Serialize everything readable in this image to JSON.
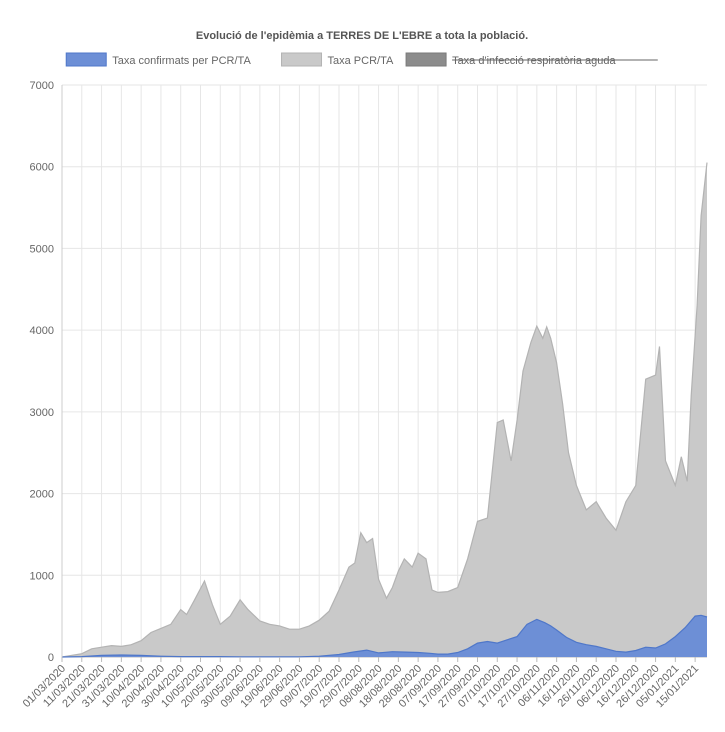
{
  "chart_data": {
    "type": "area",
    "title": "Evolució de l'epidèmia a TERRES DE L'EBRE a tota la població.",
    "ylim": [
      0,
      7000
    ],
    "yticks": [
      0,
      1000,
      2000,
      3000,
      4000,
      5000,
      6000,
      7000
    ],
    "grid": true,
    "legend_position": "top",
    "x_start": "01/03/2020",
    "x_end": "21/01/2021",
    "x_tick_labels": [
      "01/03/2020",
      "11/03/2020",
      "21/03/2020",
      "31/03/2020",
      "10/04/2020",
      "20/04/2020",
      "30/04/2020",
      "10/05/2020",
      "20/05/2020",
      "30/05/2020",
      "09/06/2020",
      "19/06/2020",
      "29/06/2020",
      "09/07/2020",
      "19/07/2020",
      "29/07/2020",
      "08/08/2020",
      "18/08/2020",
      "28/08/2020",
      "07/09/2020",
      "17/09/2020",
      "27/09/2020",
      "07/10/2020",
      "17/10/2020",
      "27/10/2020",
      "06/11/2020",
      "16/11/2020",
      "26/11/2020",
      "06/12/2020",
      "16/12/2020",
      "26/12/2020",
      "05/01/2021",
      "15/01/2021"
    ],
    "series": [
      {
        "name": "Taxa confirmats per PCR/TA",
        "color": "#6d8fd6",
        "stroke": "#4f77c9",
        "visible": true,
        "points": [
          [
            "01/03/2020",
            0
          ],
          [
            "11/03/2020",
            5
          ],
          [
            "21/03/2020",
            20
          ],
          [
            "31/03/2020",
            25
          ],
          [
            "10/04/2020",
            20
          ],
          [
            "20/04/2020",
            10
          ],
          [
            "30/04/2020",
            5
          ],
          [
            "10/05/2020",
            5
          ],
          [
            "20/05/2020",
            5
          ],
          [
            "30/05/2020",
            3
          ],
          [
            "09/06/2020",
            3
          ],
          [
            "19/06/2020",
            3
          ],
          [
            "29/06/2020",
            3
          ],
          [
            "09/07/2020",
            10
          ],
          [
            "19/07/2020",
            30
          ],
          [
            "26/07/2020",
            60
          ],
          [
            "02/08/2020",
            85
          ],
          [
            "08/08/2020",
            50
          ],
          [
            "15/08/2020",
            65
          ],
          [
            "22/08/2020",
            60
          ],
          [
            "28/08/2020",
            55
          ],
          [
            "03/09/2020",
            45
          ],
          [
            "07/09/2020",
            35
          ],
          [
            "12/09/2020",
            35
          ],
          [
            "17/09/2020",
            55
          ],
          [
            "22/09/2020",
            100
          ],
          [
            "27/09/2020",
            170
          ],
          [
            "02/10/2020",
            190
          ],
          [
            "07/10/2020",
            170
          ],
          [
            "12/10/2020",
            210
          ],
          [
            "17/10/2020",
            250
          ],
          [
            "22/10/2020",
            400
          ],
          [
            "27/10/2020",
            460
          ],
          [
            "31/10/2020",
            420
          ],
          [
            "03/11/2020",
            380
          ],
          [
            "06/11/2020",
            330
          ],
          [
            "11/11/2020",
            240
          ],
          [
            "16/11/2020",
            180
          ],
          [
            "21/11/2020",
            150
          ],
          [
            "26/11/2020",
            130
          ],
          [
            "01/12/2020",
            100
          ],
          [
            "06/12/2020",
            70
          ],
          [
            "11/12/2020",
            60
          ],
          [
            "16/12/2020",
            80
          ],
          [
            "21/12/2020",
            120
          ],
          [
            "26/12/2020",
            110
          ],
          [
            "31/12/2020",
            160
          ],
          [
            "05/01/2021",
            250
          ],
          [
            "10/01/2021",
            360
          ],
          [
            "15/01/2021",
            500
          ],
          [
            "18/01/2021",
            510
          ],
          [
            "21/01/2021",
            490
          ]
        ]
      },
      {
        "name": "Taxa PCR/TA",
        "color": "#c9c9c9",
        "stroke": "#b3b3b3",
        "visible": true,
        "points": [
          [
            "01/03/2020",
            0
          ],
          [
            "11/03/2020",
            40
          ],
          [
            "16/03/2020",
            100
          ],
          [
            "21/03/2020",
            120
          ],
          [
            "26/03/2020",
            140
          ],
          [
            "31/03/2020",
            130
          ],
          [
            "05/04/2020",
            150
          ],
          [
            "10/04/2020",
            200
          ],
          [
            "15/04/2020",
            300
          ],
          [
            "20/04/2020",
            350
          ],
          [
            "25/04/2020",
            400
          ],
          [
            "30/04/2020",
            580
          ],
          [
            "03/05/2020",
            520
          ],
          [
            "07/05/2020",
            700
          ],
          [
            "12/05/2020",
            930
          ],
          [
            "16/05/2020",
            640
          ],
          [
            "20/05/2020",
            400
          ],
          [
            "25/05/2020",
            500
          ],
          [
            "30/05/2020",
            700
          ],
          [
            "03/06/2020",
            580
          ],
          [
            "09/06/2020",
            440
          ],
          [
            "14/06/2020",
            400
          ],
          [
            "19/06/2020",
            380
          ],
          [
            "24/06/2020",
            340
          ],
          [
            "29/06/2020",
            340
          ],
          [
            "04/07/2020",
            380
          ],
          [
            "09/07/2020",
            450
          ],
          [
            "14/07/2020",
            560
          ],
          [
            "19/07/2020",
            820
          ],
          [
            "24/07/2020",
            1100
          ],
          [
            "27/07/2020",
            1150
          ],
          [
            "30/07/2020",
            1520
          ],
          [
            "02/08/2020",
            1400
          ],
          [
            "05/08/2020",
            1450
          ],
          [
            "08/08/2020",
            950
          ],
          [
            "12/08/2020",
            720
          ],
          [
            "15/08/2020",
            850
          ],
          [
            "18/08/2020",
            1050
          ],
          [
            "21/08/2020",
            1200
          ],
          [
            "25/08/2020",
            1100
          ],
          [
            "28/08/2020",
            1270
          ],
          [
            "01/09/2020",
            1200
          ],
          [
            "04/09/2020",
            820
          ],
          [
            "07/09/2020",
            790
          ],
          [
            "12/09/2020",
            800
          ],
          [
            "17/09/2020",
            850
          ],
          [
            "22/09/2020",
            1200
          ],
          [
            "27/09/2020",
            1660
          ],
          [
            "02/10/2020",
            1700
          ],
          [
            "07/10/2020",
            2870
          ],
          [
            "10/10/2020",
            2900
          ],
          [
            "14/10/2020",
            2400
          ],
          [
            "17/10/2020",
            2900
          ],
          [
            "20/10/2020",
            3500
          ],
          [
            "24/10/2020",
            3850
          ],
          [
            "27/10/2020",
            4050
          ],
          [
            "30/10/2020",
            3900
          ],
          [
            "01/11/2020",
            4040
          ],
          [
            "03/11/2020",
            3900
          ],
          [
            "06/11/2020",
            3600
          ],
          [
            "09/11/2020",
            3100
          ],
          [
            "12/11/2020",
            2500
          ],
          [
            "16/11/2020",
            2100
          ],
          [
            "21/11/2020",
            1800
          ],
          [
            "26/11/2020",
            1900
          ],
          [
            "01/12/2020",
            1700
          ],
          [
            "06/12/2020",
            1550
          ],
          [
            "11/12/2020",
            1900
          ],
          [
            "16/12/2020",
            2100
          ],
          [
            "21/12/2020",
            3400
          ],
          [
            "26/12/2020",
            3450
          ],
          [
            "28/12/2020",
            3800
          ],
          [
            "31/12/2020",
            2400
          ],
          [
            "05/01/2021",
            2100
          ],
          [
            "08/01/2021",
            2450
          ],
          [
            "11/01/2021",
            2150
          ],
          [
            "13/01/2021",
            3200
          ],
          [
            "16/01/2021",
            4300
          ],
          [
            "18/01/2021",
            5400
          ],
          [
            "21/01/2021",
            6050
          ]
        ]
      },
      {
        "name": "Taxa d'infecció respiratòria aguda",
        "color": "#8c8c8c",
        "stroke": "#7a7a7a",
        "visible": false,
        "points": []
      }
    ]
  }
}
